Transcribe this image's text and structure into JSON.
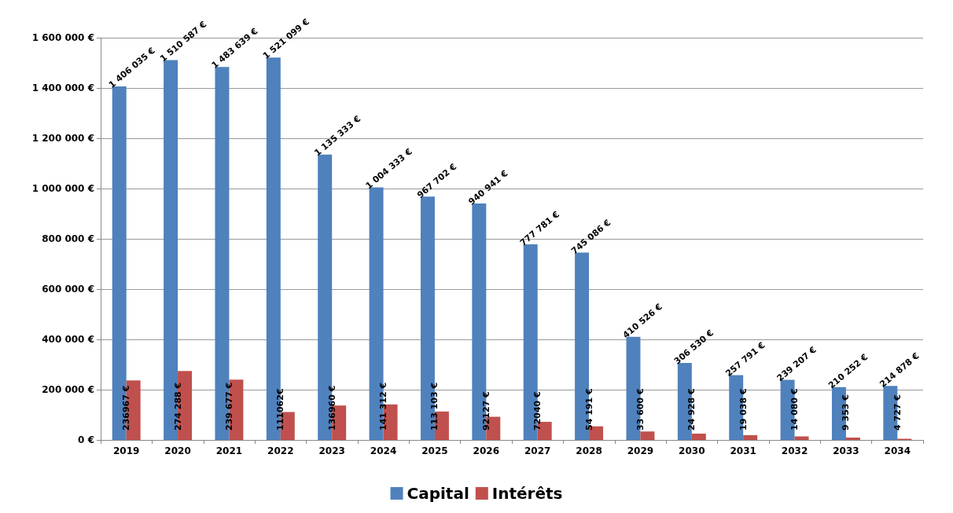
{
  "chart_data": {
    "type": "bar",
    "categories": [
      "2019",
      "2020",
      "2021",
      "2022",
      "2023",
      "2024",
      "2025",
      "2026",
      "2027",
      "2028",
      "2029",
      "2030",
      "2031",
      "2032",
      "2033",
      "2034"
    ],
    "series": [
      {
        "name": "Capital",
        "color": "#4f81bd",
        "values": [
          1406035,
          1510587,
          1483639,
          1521099,
          1135333,
          1004333,
          967702,
          940941,
          777781,
          745086,
          410526,
          306530,
          257791,
          239207,
          210252,
          214878
        ],
        "value_labels": [
          "1 406 035 €",
          "1 510 587 €",
          "1 483 639 €",
          "1 521 099 €",
          "1 135 333 €",
          "1 004 333 €",
          "967 702 €",
          "940 941 €",
          "777 781 €",
          "745 086 €",
          "410 526 €",
          "306 530 €",
          "257 791 €",
          "239 207 €",
          "210 252 €",
          "214 878 €"
        ]
      },
      {
        "name": "Intérêts",
        "color": "#c0504d",
        "values": [
          236967,
          274288,
          239677,
          111062,
          136960,
          141312,
          113103,
          92127,
          72040,
          54191,
          33600,
          24928,
          19038,
          14080,
          9353,
          4727
        ],
        "value_labels": [
          "236967 €",
          "274 288 €",
          "239 677 €",
          "111062€",
          "136960 €",
          "141 312 €",
          "113 103 €",
          "92127 €",
          "72040 €",
          "54 191 €",
          "33 600 €",
          "24 928 €",
          "19 038 €",
          "14 080 €",
          "9 353 €",
          "4 727 €"
        ]
      }
    ],
    "ylim": [
      0,
      1600000
    ],
    "yticks": [
      {
        "value": 0,
        "label": "0 €"
      },
      {
        "value": 200000,
        "label": "200 000 €"
      },
      {
        "value": 400000,
        "label": "400 000 €"
      },
      {
        "value": 600000,
        "label": "600 000 €"
      },
      {
        "value": 800000,
        "label": "800 000 €"
      },
      {
        "value": 1000000,
        "label": "1 000 000 €"
      },
      {
        "value": 1200000,
        "label": "1 200 000 €"
      },
      {
        "value": 1400000,
        "label": "1 400 000 €"
      },
      {
        "value": 1600000,
        "label": "1 600 000 €"
      }
    ],
    "grid": true,
    "legend": "bottom"
  }
}
